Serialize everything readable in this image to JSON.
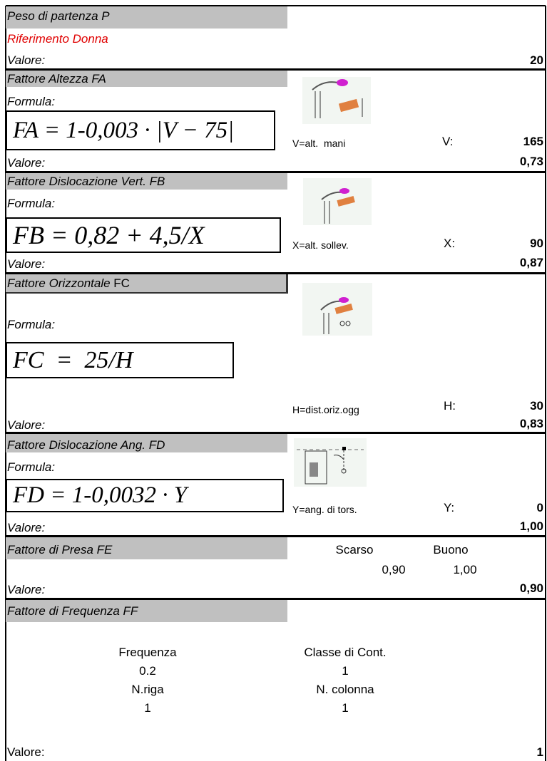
{
  "sections": [
    {
      "title": "Peso di partenza P",
      "subtitle": "Riferimento Donna",
      "value_label": "Valore:",
      "value": "20"
    },
    {
      "title": "Fattore Altezza FA",
      "formula_label": "Formula:",
      "formula": "FA = 1-0,003 · |V − 75|",
      "var_desc": "V=alt.  mani",
      "var_name": "V:",
      "var_value": "165",
      "value_label": "Valore:",
      "value": "0,73"
    },
    {
      "title": "Fattore Dislocazione Vert. FB",
      "formula_label": "Formula:",
      "formula": "FB = 0,82 + 4,5/X",
      "var_desc": "X=alt. sollev.",
      "var_name": "X:",
      "var_value": "90",
      "value_label": "Valore:",
      "value": "0,87"
    },
    {
      "title": "Fattore Orizzontale",
      "title_suffix": "FC",
      "formula_label": "Formula:",
      "formula": "FC  =  25/H",
      "var_desc": "H=dist.oriz.ogg",
      "var_name": "H:",
      "var_value": "30",
      "value_label": "Valore:",
      "value": "0,83"
    },
    {
      "title": "Fattore Dislocazione Ang. FD",
      "formula_label": "Formula:",
      "formula": "FD = 1-0,0032 · Y",
      "var_desc": "Y=ang. di tors.",
      "var_name": "Y:",
      "var_value": "0",
      "value_label": "Valore:",
      "value": "1,00"
    },
    {
      "title": "Fattore di Presa FE",
      "options": [
        {
          "label": "Scarso",
          "value": "0,90"
        },
        {
          "label": "Buono",
          "value": "1,00"
        }
      ],
      "value_label": "Valore:",
      "value": "0,90"
    },
    {
      "title": "Fattore di Frequenza FF",
      "freq_label": "Frequenza",
      "freq": "0.2",
      "class_label": "Classe di Cont.",
      "class": "1",
      "row_label": "N.riga",
      "row": "1",
      "col_label": "N. colonna",
      "col": "1",
      "value_label": "Valore:",
      "value": "1"
    }
  ]
}
